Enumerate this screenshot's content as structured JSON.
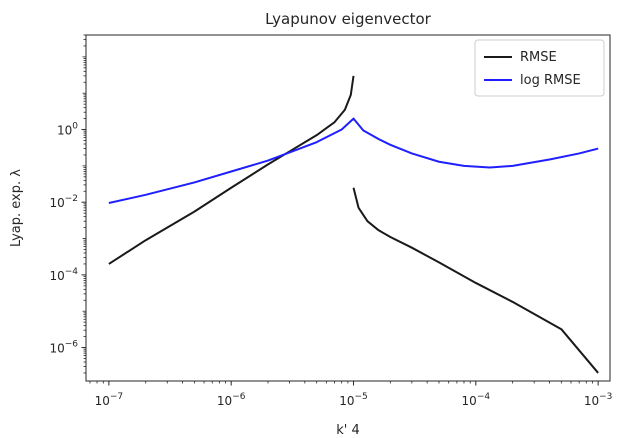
{
  "chart_data": {
    "type": "line",
    "title": "Lyapunov eigenvector",
    "xlabel": "k' 4",
    "ylabel": "Lyap. exp. λ",
    "xscale": "log",
    "yscale": "log",
    "xlim": [
      6.5e-08,
      0.00125
    ],
    "ylim": [
      1.2e-07,
      400.0
    ],
    "grid": false,
    "legend_position": "top-right",
    "xticks": [
      {
        "value": 1e-07,
        "base": "10",
        "exp": "−7"
      },
      {
        "value": 1e-06,
        "base": "10",
        "exp": "−6"
      },
      {
        "value": 1e-05,
        "base": "10",
        "exp": "−5"
      },
      {
        "value": 0.0001,
        "base": "10",
        "exp": "−4"
      },
      {
        "value": 0.001,
        "base": "10",
        "exp": "−3"
      }
    ],
    "yticks": [
      {
        "value": 1,
        "base": "10",
        "exp": "0"
      },
      {
        "value": 0.01,
        "base": "10",
        "exp": "−2"
      },
      {
        "value": 0.0001,
        "base": "10",
        "exp": "−4"
      },
      {
        "value": 1e-06,
        "base": "10",
        "exp": "−6"
      }
    ],
    "series": [
      {
        "name": "RMSE",
        "color": "#1a1a1a",
        "segments": [
          [
            [
              1e-07,
              0.0002
            ],
            [
              2e-07,
              0.0009
            ],
            [
              5e-07,
              0.0055
            ],
            [
              1e-06,
              0.025
            ],
            [
              2e-06,
              0.11
            ],
            [
              3e-06,
              0.25
            ],
            [
              5e-06,
              0.7
            ],
            [
              7e-06,
              1.6
            ],
            [
              8.5e-06,
              3.5
            ],
            [
              9.5e-06,
              9
            ],
            [
              1e-05,
              30
            ]
          ],
          [
            [
              1e-05,
              0.025
            ],
            [
              1.1e-05,
              0.007
            ],
            [
              1.3e-05,
              0.003
            ],
            [
              1.6e-05,
              0.0017
            ],
            [
              2e-05,
              0.0011
            ],
            [
              3e-05,
              0.00056
            ],
            [
              5e-05,
              0.00022
            ],
            [
              0.0001,
              6e-05
            ],
            [
              0.0002,
              1.8e-05
            ],
            [
              0.0005,
              3.2e-06
            ],
            [
              0.001,
              2e-07
            ]
          ]
        ]
      },
      {
        "name": "log RMSE",
        "color": "#1f1fff",
        "segments": [
          [
            [
              1e-07,
              0.0095
            ],
            [
              2e-07,
              0.016
            ],
            [
              5e-07,
              0.035
            ],
            [
              1e-06,
              0.07
            ],
            [
              2e-06,
              0.14
            ],
            [
              5e-06,
              0.45
            ],
            [
              8e-06,
              1.0
            ],
            [
              1e-05,
              2.0
            ],
            [
              1.2e-05,
              0.95
            ],
            [
              1.6e-05,
              0.55
            ],
            [
              2e-05,
              0.38
            ],
            [
              3e-05,
              0.22
            ],
            [
              5e-05,
              0.13
            ],
            [
              8e-05,
              0.1
            ],
            [
              0.00013,
              0.09
            ],
            [
              0.0002,
              0.1
            ],
            [
              0.0004,
              0.15
            ],
            [
              0.0007,
              0.22
            ],
            [
              0.001,
              0.3
            ]
          ]
        ]
      }
    ]
  }
}
